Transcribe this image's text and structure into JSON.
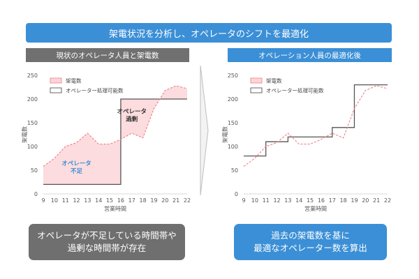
{
  "banner": "架電状況を分析し、オペレータのシフトを最適化",
  "left_header": "現状のオペレータ人員と架電数",
  "right_header": "オペレーション人員の最適化後",
  "left_callout": {
    "line1": "オペレータが不足している時間帯や",
    "line2": "過剰な時間帯が存在"
  },
  "right_callout": {
    "line1": "過去の架電数を基に",
    "line2": "最適なオペレーター数を算出"
  },
  "colors": {
    "accent_blue": "#3b8fd6",
    "gray_header": "#707070",
    "calls_line": "#f07c86",
    "calls_fill": "#fcd6d8",
    "capacity_line": "#555555"
  },
  "chart_data": [
    {
      "type": "line",
      "x": [
        9,
        10,
        11,
        12,
        13,
        14,
        15,
        16,
        17,
        18,
        19,
        20,
        21,
        22
      ],
      "xlabel": "営業時間",
      "ylabel": "架電数",
      "ylim": [
        0,
        250
      ],
      "yticks": [
        0,
        50,
        100,
        150,
        200,
        250
      ],
      "legend_position": "top-left",
      "grid": false,
      "series": [
        {
          "name": "架電数",
          "values": [
            58,
            75,
            100,
            108,
            128,
            105,
            105,
            115,
            128,
            118,
            180,
            218,
            228,
            222
          ]
        },
        {
          "name": "オペレーター処理可能数",
          "values": [
            20,
            20,
            20,
            20,
            20,
            20,
            20,
            200,
            200,
            200,
            200,
            200,
            200,
            200
          ]
        }
      ],
      "annotations": [
        {
          "text_line1": "オペレータ",
          "text_line2": "不足",
          "color": "#3b8fd6",
          "at_x": 12,
          "at_y": 60
        },
        {
          "text_line1": "オペレータ",
          "text_line2": "過剰",
          "color": "#333333",
          "at_x": 17,
          "at_y": 170
        }
      ]
    },
    {
      "type": "line",
      "x": [
        9,
        10,
        11,
        12,
        13,
        14,
        15,
        16,
        17,
        18,
        19,
        20,
        21,
        22
      ],
      "xlabel": "営業時間",
      "ylabel": "架電数",
      "ylim": [
        0,
        250
      ],
      "yticks": [
        0,
        50,
        100,
        150,
        200,
        250
      ],
      "legend_position": "top-left",
      "grid": false,
      "series": [
        {
          "name": "架電数",
          "values": [
            58,
            75,
            100,
            108,
            128,
            105,
            105,
            115,
            128,
            118,
            180,
            218,
            228,
            222
          ]
        },
        {
          "name": "オペレーター処理可能数",
          "values": [
            80,
            80,
            110,
            110,
            120,
            120,
            120,
            120,
            140,
            140,
            230,
            230,
            230,
            230
          ]
        }
      ]
    }
  ]
}
